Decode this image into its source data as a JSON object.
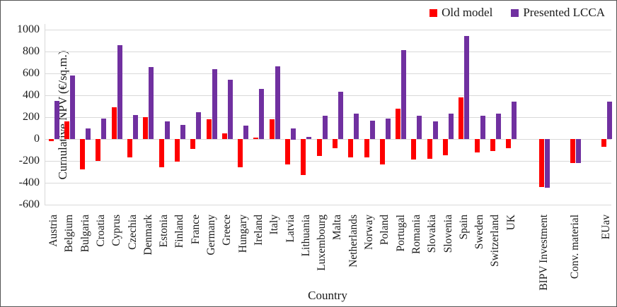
{
  "chart_data": {
    "type": "bar",
    "title": "",
    "xlabel": "Country",
    "ylabel": "Cumulative NPV (€/sq.m.)",
    "ylim": [
      -600,
      1000
    ],
    "ytick_interval": 200,
    "grid": true,
    "legend_position": "top-right",
    "categories": [
      "Austria",
      "Belgium",
      "Bulgaria",
      "Croatia",
      "Cyprus",
      "Czechia",
      "Denmark",
      "Estonia",
      "Finland",
      "France",
      "Germany",
      "Greece",
      "Hungary",
      "Ireland",
      "Italy",
      "Latvia",
      "Lithuania",
      "Luxembourg",
      "Malta",
      "Netherlands",
      "Norway",
      "Poland",
      "Portugal",
      "Romania",
      "Slovakia",
      "Slovenia",
      "Spain",
      "Sweden",
      "Switzerland",
      "UK",
      "BIPV Investment",
      "Conv. material",
      "EUav"
    ],
    "series": [
      {
        "name": "Old model",
        "color": "#fe0000",
        "values": [
          -20,
          160,
          -280,
          -200,
          290,
          -165,
          200,
          -260,
          -205,
          -90,
          180,
          50,
          -255,
          10,
          180,
          -230,
          -330,
          -155,
          -85,
          -165,
          -165,
          -235,
          275,
          -185,
          -180,
          -150,
          380,
          -120,
          -110,
          -85,
          -440,
          -220,
          -70
        ]
      },
      {
        "name": "Presented LCCA",
        "color": "#7030a0",
        "values": [
          350,
          580,
          100,
          185,
          860,
          220,
          655,
          160,
          130,
          245,
          640,
          545,
          120,
          455,
          665,
          100,
          20,
          215,
          430,
          235,
          170,
          190,
          815,
          210,
          160,
          230,
          945,
          210,
          235,
          340,
          -445,
          -220,
          345
        ]
      }
    ]
  },
  "legend": [
    {
      "label": "Old model",
      "color": "#fe0000"
    },
    {
      "label": "Presented LCCA",
      "color": "#7030a0"
    }
  ],
  "axes": {
    "x_title": "Country",
    "y_title": "Cumulative NPV (€/sq.m.)"
  }
}
